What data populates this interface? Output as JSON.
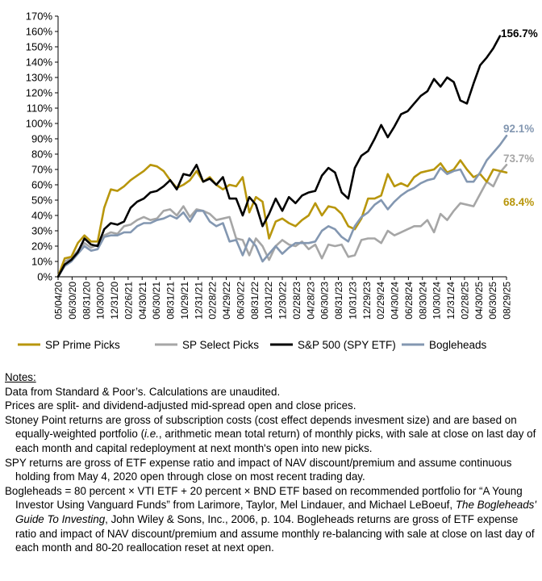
{
  "chart_data": {
    "type": "line",
    "x_ticks": [
      "05/04/20",
      "06/30/20",
      "08/31/20",
      "10/30/20",
      "12/31/20",
      "02/26/21",
      "04/30/21",
      "06/30/21",
      "08/31/21",
      "10/29/21",
      "12/31/21",
      "02/28/22",
      "04/29/22",
      "06/30/22",
      "08/31/22",
      "10/31/22",
      "12/30/22",
      "02/28/23",
      "04/28/23",
      "06/30/23",
      "08/31/23",
      "10/31/23",
      "12/29/23",
      "02/29/24",
      "04/30/24",
      "06/28/24",
      "08/30/24",
      "10/30/24",
      "12/31/24",
      "02/28/25",
      "04/30/25",
      "06/30/25",
      "08/29/25"
    ],
    "y_ticks": [
      "0%",
      "10%",
      "20%",
      "30%",
      "40%",
      "50%",
      "60%",
      "70%",
      "80%",
      "90%",
      "100%",
      "110%",
      "120%",
      "130%",
      "140%",
      "150%",
      "160%",
      "170%"
    ],
    "ylim": [
      0,
      170
    ],
    "grid": false,
    "legend_position": "bottom",
    "series": [
      {
        "name": "SP Prime Picks",
        "color": "#b8960c",
        "values": [
          0,
          12,
          13,
          22,
          27,
          23,
          23,
          45,
          57,
          56,
          59,
          63,
          66,
          69,
          73,
          72,
          69,
          63,
          58,
          60,
          63,
          69,
          62,
          65,
          60,
          57,
          60,
          59,
          65,
          42,
          52,
          49,
          25,
          36,
          38,
          35,
          33,
          37,
          40,
          48,
          40,
          46,
          45,
          41,
          33,
          31,
          38,
          51,
          51,
          53,
          67,
          59,
          61,
          59,
          65,
          68,
          69,
          70,
          74,
          68,
          70,
          76,
          70,
          65,
          67,
          62,
          70,
          69,
          68
        ]
      },
      {
        "name": "SP Select Picks",
        "color": "#a6a6a6",
        "values": [
          0,
          10,
          12,
          17,
          22,
          19,
          21,
          27,
          29,
          28,
          33,
          34,
          37,
          39,
          37,
          38,
          43,
          44,
          40,
          46,
          39,
          44,
          43,
          41,
          37,
          38,
          39,
          25,
          24,
          14,
          25,
          20,
          11,
          20,
          24,
          21,
          20,
          23,
          18,
          21,
          12,
          21,
          20,
          21,
          13,
          14,
          24,
          25,
          25,
          22,
          30,
          27,
          29,
          31,
          33,
          33,
          37,
          29,
          41,
          37,
          43,
          48,
          47,
          46,
          54,
          62,
          59,
          68,
          73
        ]
      },
      {
        "name": "S&P 500 (SPY ETF)",
        "color": "#000000",
        "values": [
          0,
          8,
          11,
          16,
          25,
          21,
          20,
          31,
          35,
          34,
          36,
          45,
          49,
          51,
          55,
          56,
          59,
          63,
          57,
          67,
          66,
          73,
          62,
          64,
          60,
          65,
          51,
          51,
          40,
          52,
          47,
          33,
          41,
          51,
          43,
          52,
          48,
          53,
          55,
          56,
          66,
          71,
          68,
          55,
          51,
          71,
          79,
          82,
          90,
          99,
          91,
          98,
          106,
          108,
          113,
          118,
          121,
          129,
          124,
          130,
          127,
          115,
          113,
          126,
          138,
          143,
          149,
          157
        ]
      },
      {
        "name": "Bogleheads",
        "color": "#8397b1",
        "values": [
          0,
          7,
          10,
          15,
          20,
          17,
          18,
          26,
          27,
          27,
          29,
          29,
          33,
          35,
          35,
          37,
          38,
          40,
          38,
          42,
          36,
          43,
          43,
          36,
          33,
          35,
          23,
          24,
          14,
          25,
          20,
          10,
          15,
          20,
          15,
          19,
          22,
          22,
          22,
          23,
          30,
          33,
          31,
          26,
          23,
          33,
          39,
          42,
          47,
          50,
          44,
          49,
          53,
          56,
          58,
          61,
          63,
          64,
          71,
          67,
          69,
          70,
          62,
          62,
          68,
          76,
          81,
          86,
          92
        ]
      }
    ],
    "end_labels": [
      "156.7%",
      "92.1%",
      "73.7%",
      "68.4%"
    ]
  },
  "notes": {
    "header": "Notes:",
    "line1": "Data from Standard & Poor’s. Calculations are unaudited.",
    "line2": "Prices are split- and dividend-adjusted mid-spread open and close prices.",
    "line3a": "Stoney Point returns are gross of subscription costs (cost effect depends invesment size) and are based on equally-weighted portfolio (",
    "line3_ie": "i.e.",
    "line3b": ", arithmetic mean total return) of monthly picks, with sale at close on last day of each month and capital redeployment at next month's open into new picks.",
    "line4": "SPY returns are gross of ETF expense ratio and impact of NAV discount/premium and assume continuous holding from May 4, 2020 open through close on most recent trading day.",
    "line5a": "Bogleheads = 80 percent × VTI ETF + 20 percent × BND ETF based on recommended portfolio for “A Young Investor Using Vanguard Funds” from Larimore, Taylor, Mel Lindauer, and Michael LeBoeuf, ",
    "line5_book": "The Bogleheads' Guide To Investing",
    "line5b": ", John Wiley & Sons, Inc., 2006, p. 104. Bogleheads returns are gross of ETF expense ratio and impact of NAV discount/premium and assume monthly re-balancing with sale at close on last day of each month and 80-20 reallocation reset at next open."
  }
}
